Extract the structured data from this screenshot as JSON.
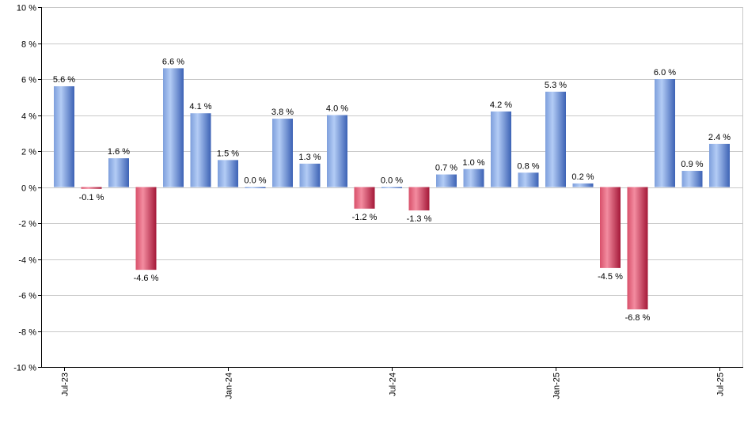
{
  "chart_data": {
    "type": "bar",
    "title": "",
    "xlabel": "",
    "ylabel": "",
    "ylim": [
      -10,
      10
    ],
    "y_ticks": [
      10,
      8,
      6,
      4,
      2,
      0,
      -2,
      -4,
      -6,
      -8,
      -10
    ],
    "y_tick_labels": [
      "10 %",
      "8 %",
      "6 %",
      "4 %",
      "2 %",
      "0 %",
      "-2 %",
      "-4 %",
      "-6 %",
      "-8 %",
      "-10 %"
    ],
    "x_tick_labels": [
      {
        "index": 0,
        "label": "Jul-23"
      },
      {
        "index": 6,
        "label": "Jan-24"
      },
      {
        "index": 12,
        "label": "Jul-24"
      },
      {
        "index": 18,
        "label": "Jan-25"
      },
      {
        "index": 24,
        "label": "Jul-25"
      }
    ],
    "categories": [
      "Jul-23",
      "Aug-23",
      "Sep-23",
      "Oct-23",
      "Nov-23",
      "Dec-23",
      "Jan-24",
      "Feb-24",
      "Mar-24",
      "Apr-24",
      "May-24",
      "Jun-24",
      "Jul-24",
      "Aug-24",
      "Sep-24",
      "Oct-24",
      "Nov-24",
      "Dec-24",
      "Jan-25",
      "Feb-25",
      "Mar-25",
      "Apr-25",
      "May-25",
      "Jun-25",
      "Jul-25"
    ],
    "values": [
      5.6,
      -0.1,
      1.6,
      -4.6,
      6.6,
      4.1,
      1.5,
      0.0,
      3.8,
      1.3,
      4.0,
      -1.2,
      0.0,
      -1.3,
      0.7,
      1.0,
      4.2,
      0.8,
      5.3,
      0.2,
      -4.5,
      -6.8,
      6.0,
      0.9,
      2.4
    ],
    "data_labels": [
      "5.6 %",
      "-0.1 %",
      "1.6 %",
      "-4.6 %",
      "6.6 %",
      "4.1 %",
      "1.5 %",
      "0.0 %",
      "3.8 %",
      "1.3 %",
      "4.0 %",
      "-1.2 %",
      "0.0 %",
      "-1.3 %",
      "0.7 %",
      "1.0 %",
      "4.2 %",
      "0.8 %",
      "5.3 %",
      "0.2 %",
      "-4.5 %",
      "-6.8 %",
      "6.0 %",
      "0.9 %",
      "2.4 %"
    ],
    "grid": true,
    "legend": "none",
    "colors": {
      "positive_light": "#a9c4f2",
      "positive_dark": "#3d64b8",
      "negative_light": "#f07d92",
      "negative_dark": "#a81c3c",
      "grid": "#c8c8c8",
      "axis": "#000000"
    }
  }
}
